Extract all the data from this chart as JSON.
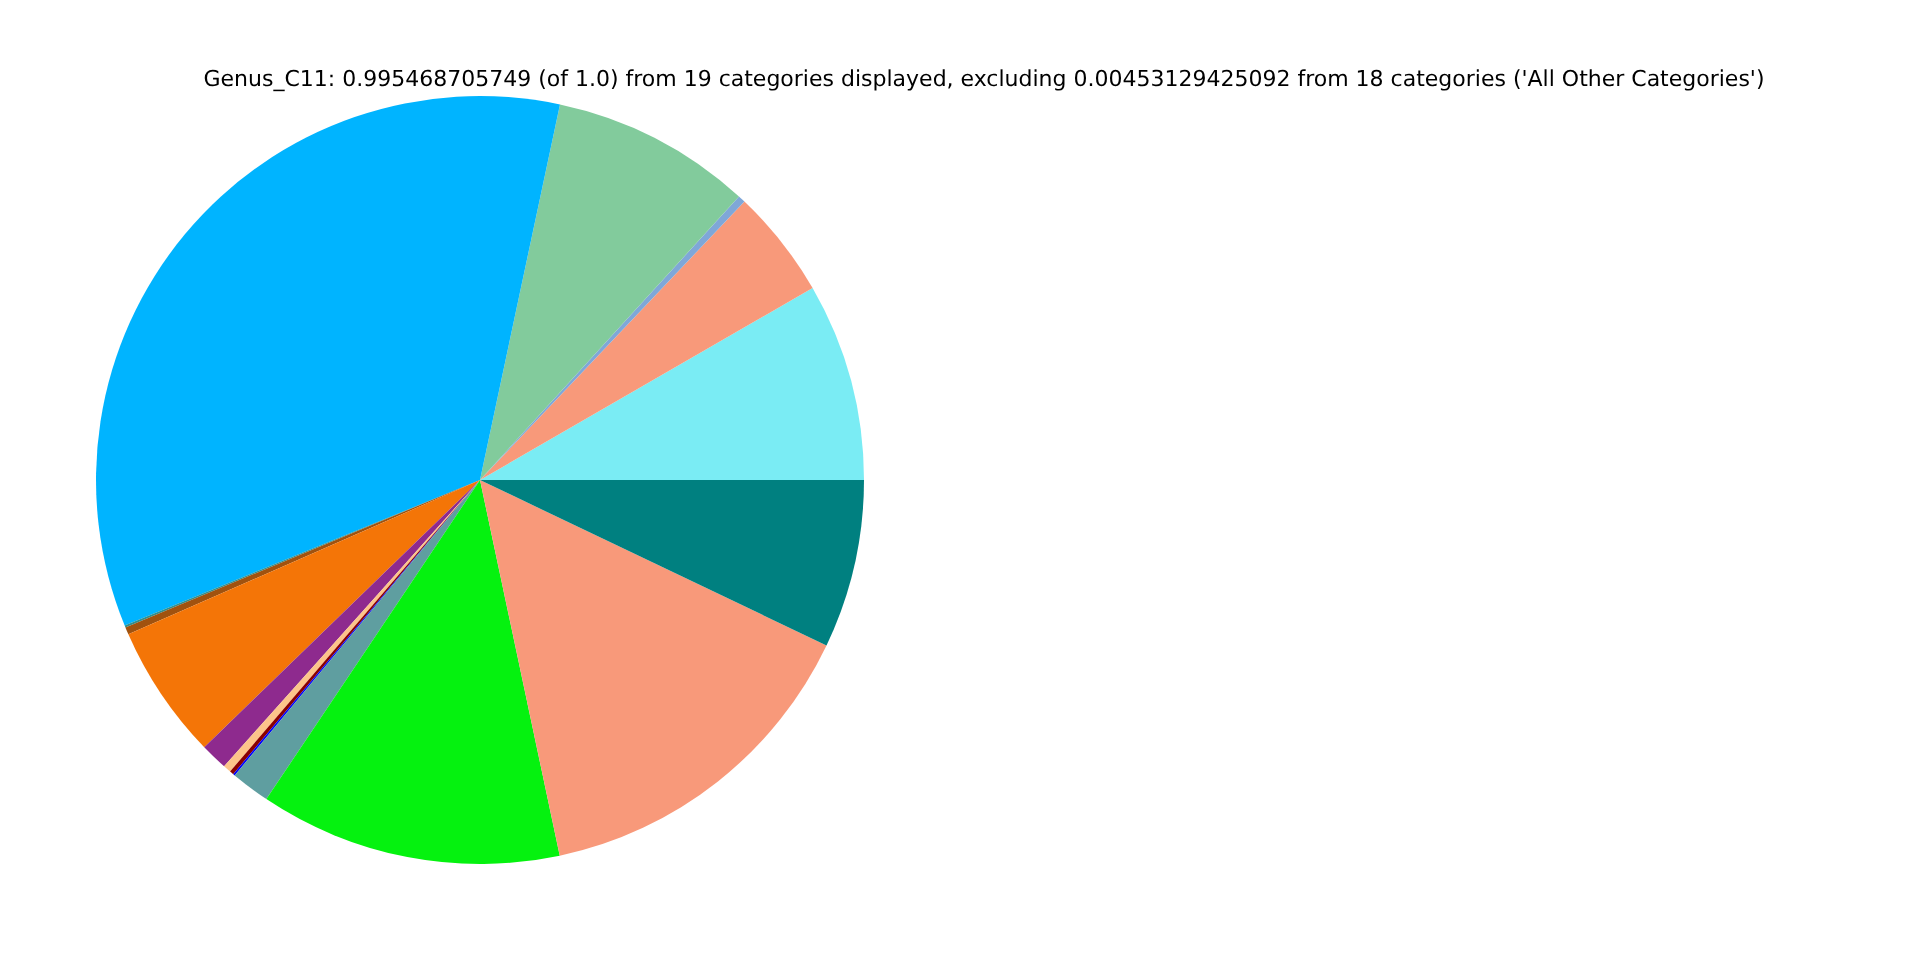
{
  "chart_data": {
    "type": "pie",
    "title": "Genus_C11: 0.995468705749 (of 1.0) from 19 categories displayed, excluding 0.00453129425092 from 18 categories ('All Other Categories')",
    "categories": [
      null,
      null,
      null,
      null,
      null,
      null,
      null,
      null,
      null,
      null,
      null,
      null,
      null,
      null,
      null,
      null
    ],
    "values": [
      8.33,
      4.58,
      0.31,
      8.44,
      34.53,
      0.08,
      0.31,
      5.67,
      1.14,
      0.33,
      0.17,
      0.08,
      1.64,
      12.72,
      14.58,
      7.09
    ],
    "colors": [
      "#7aecf4",
      "#f8997a",
      "#7fa7d8",
      "#82cb9c",
      "#00b4ff",
      "#2f8f8f",
      "#a0520f",
      "#f47507",
      "#8e2a8e",
      "#fdc48a",
      "#8b0000",
      "#0000ff",
      "#5f9ea0",
      "#05f20f",
      "#f8997a",
      "#008080"
    ]
  }
}
